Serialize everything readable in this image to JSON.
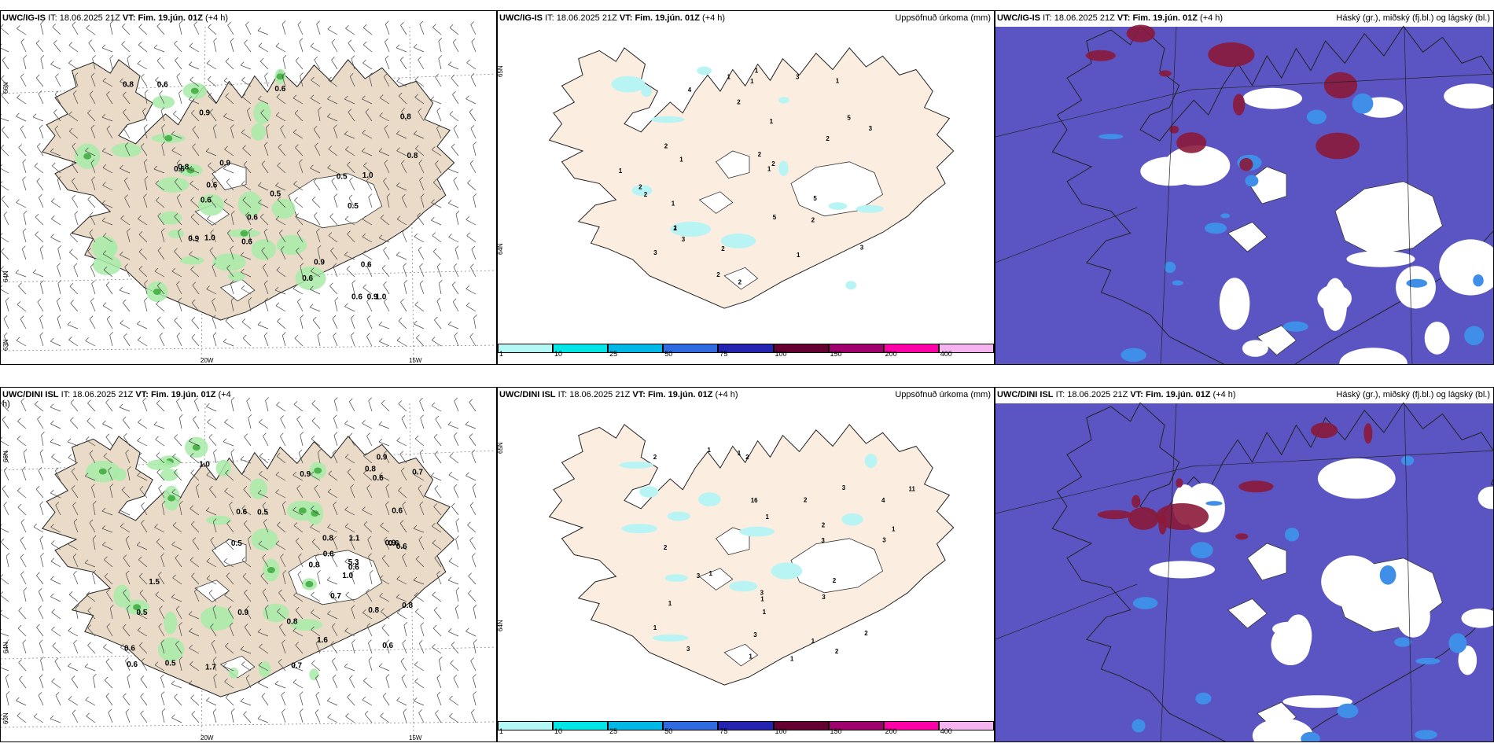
{
  "panels": [
    {
      "id": "p1",
      "model": "UWC/IG-IS",
      "it_label": "IT:",
      "it_value": "18.06.2025 21Z",
      "vt_label": "VT:",
      "vt_value": "Fim. 19.jún. 01Z",
      "lead": "(+4 h)",
      "right_title": "",
      "type": "wind",
      "lat_labels": [
        "66N",
        "64N",
        "63N"
      ],
      "lon_labels": [
        "20W",
        "15W"
      ],
      "values": [
        "0.6",
        "0.6",
        "0.6",
        "0.5",
        "1.0",
        "0.9",
        "0.6",
        "0.6",
        "1.0",
        "0.5",
        "1.0",
        "0.6",
        "0.8",
        "0.6",
        "0.6",
        "0.9",
        "0.5",
        "0.8",
        "0.8",
        "0.9",
        "0.9",
        "0.8",
        "0.6",
        "0.9",
        "0.6"
      ]
    },
    {
      "id": "p2",
      "model": "UWC/IG-IS",
      "it_label": "IT:",
      "it_value": "18.06.2025 21Z",
      "vt_label": "VT:",
      "vt_value": "Fim. 19.jún. 01Z",
      "lead": "(+4 h)",
      "right_title": "Uppsöfnuð úrkoma (mm)",
      "type": "precip",
      "lat_labels": [
        "65N",
        "64N"
      ],
      "values": [
        "3",
        "1",
        "4",
        "5",
        "5",
        "1",
        "1",
        "1",
        "3",
        "2",
        "2",
        "1",
        "2",
        "1",
        "2",
        "1",
        "3",
        "1",
        "2",
        "2",
        "1",
        "1",
        "2",
        "2",
        "2",
        "2",
        "2",
        "3",
        "1",
        "5",
        "2",
        "3"
      ]
    },
    {
      "id": "p3",
      "model": "UWC/IG-IS",
      "it_label": "IT:",
      "it_value": "18.06.2025 21Z",
      "vt_label": "VT:",
      "vt_value": "Fim. 19.jún. 01Z",
      "lead": "(+4 h)",
      "right_title": "Háský (gr.), miðský (fj.bl.) og lágský (bl.)",
      "type": "cloud"
    },
    {
      "id": "p4",
      "model": "UWC/DINI ISL",
      "it_label": "IT:",
      "it_value": "18.06.2025 21Z",
      "vt_label": "VT:",
      "vt_value": "Fim. 19.jún. 01Z",
      "lead": "(+4 h)",
      "right_title": "",
      "type": "wind",
      "lat_labels": [
        "66N",
        "64N",
        "63N"
      ],
      "lon_labels": [
        "20W",
        "15W"
      ],
      "values": [
        "0.5",
        "1.1",
        "0.6",
        "1.0",
        "0.8",
        "0.6",
        "0.8",
        "0.7",
        "0.6",
        "0.9",
        "0.8",
        "1.7",
        "0.9",
        "0.6",
        "0.7",
        "5.3",
        "0.5",
        "0.5",
        "1.6",
        "1.0",
        "1.5",
        "0.9",
        "0.8",
        "0.6",
        "0.6",
        "0.7",
        "0.5",
        "0.8",
        "0.6",
        "0.6",
        "0.8",
        "0.6",
        "0.9",
        "0.6"
      ]
    },
    {
      "id": "p5",
      "model": "UWC/DINI ISL",
      "it_label": "IT:",
      "it_value": "18.06.2025 21Z",
      "vt_label": "VT:",
      "vt_value": "Fim. 19.jún. 01Z",
      "lead": "(+4 h)",
      "right_title": "Uppsöfnuð úrkoma (mm)",
      "type": "precip",
      "lat_labels": [
        "65N",
        "64N"
      ],
      "values": [
        "2",
        "1",
        "1",
        "3",
        "1",
        "11",
        "16",
        "4",
        "1",
        "1",
        "2",
        "3",
        "3",
        "1",
        "3",
        "1",
        "3",
        "1",
        "1",
        "3",
        "3",
        "2",
        "2",
        "1",
        "2",
        "1",
        "2",
        "1",
        "2",
        "3",
        "2"
      ]
    },
    {
      "id": "p6",
      "model": "UWC/DINI ISL",
      "it_label": "IT:",
      "it_value": "18.06.2025 21Z",
      "vt_label": "VT:",
      "vt_value": "Fim. 19.jún. 01Z",
      "lead": "(+4 h)",
      "right_title": "Háský (gr.), miðský (fj.bl.) og lágský (bl.)",
      "type": "cloud"
    }
  ],
  "colorbar": {
    "labels": [
      "1",
      "10",
      "25",
      "50",
      "75",
      "100",
      "150",
      "200",
      "400"
    ],
    "colors": [
      "#b3f7f7",
      "#00e5e5",
      "#00b8e6",
      "#2f6ae0",
      "#2424b0",
      "#660033",
      "#a0006e",
      "#ff00a8",
      "#f5b3ef"
    ]
  },
  "colors": {
    "land": "#eadbc8",
    "land_precip": "#fbeee0",
    "glacier": "#ffffff",
    "green_light": "#a8eba8",
    "green_mid": "#4db34d",
    "green_dark": "#0b5e0b",
    "precip_cyan": "#b8f4f4",
    "cloud_low": "#5b55c4",
    "cloud_mid": "#3f8fe8",
    "cloud_high": "#8b1a3a"
  }
}
